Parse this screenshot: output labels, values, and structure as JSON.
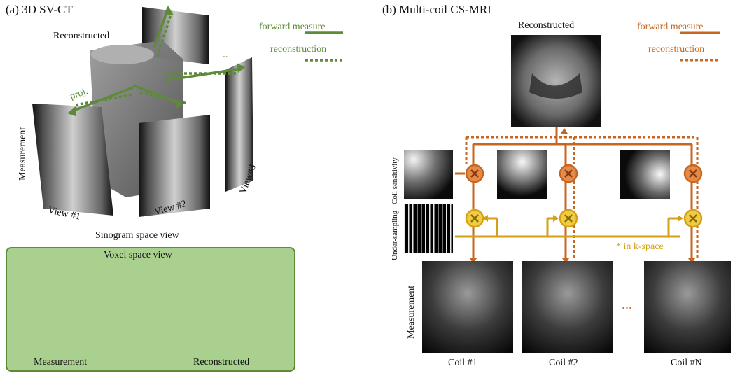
{
  "panel_a": {
    "title": "(a) 3D SV-CT",
    "reconstructed": "Reconstructed",
    "measurement": "Measurement",
    "proj": "proj.",
    "view1": "View #1",
    "view2": "View #2",
    "view3": "View#3",
    "dots": "..",
    "sinogram_caption": "Sinogram space view",
    "legend": {
      "forward": "forward measure",
      "recon": "reconstruction"
    },
    "voxel": {
      "title": "Voxel space view",
      "measurement": "Measurement",
      "reconstructed": "Reconstructed"
    }
  },
  "panel_b": {
    "title": "(b) Multi-coil CS-MRI",
    "reconstructed": "Reconstructed",
    "legend": {
      "forward": "forward measure",
      "recon": "reconstruction"
    },
    "coil_sensitivity": "Coil sensitivity",
    "under_sampling": "Under-sampling",
    "kspace_note": "* in k-space",
    "measurement": "Measurement",
    "coils": [
      "Coil #1",
      "Coil #2",
      "Coil #N"
    ],
    "dots": "..."
  },
  "colors": {
    "green": "#5f8a3a",
    "orange": "#c8651e",
    "gold": "#d4a017",
    "voxel_bg": "#a9d08e"
  }
}
